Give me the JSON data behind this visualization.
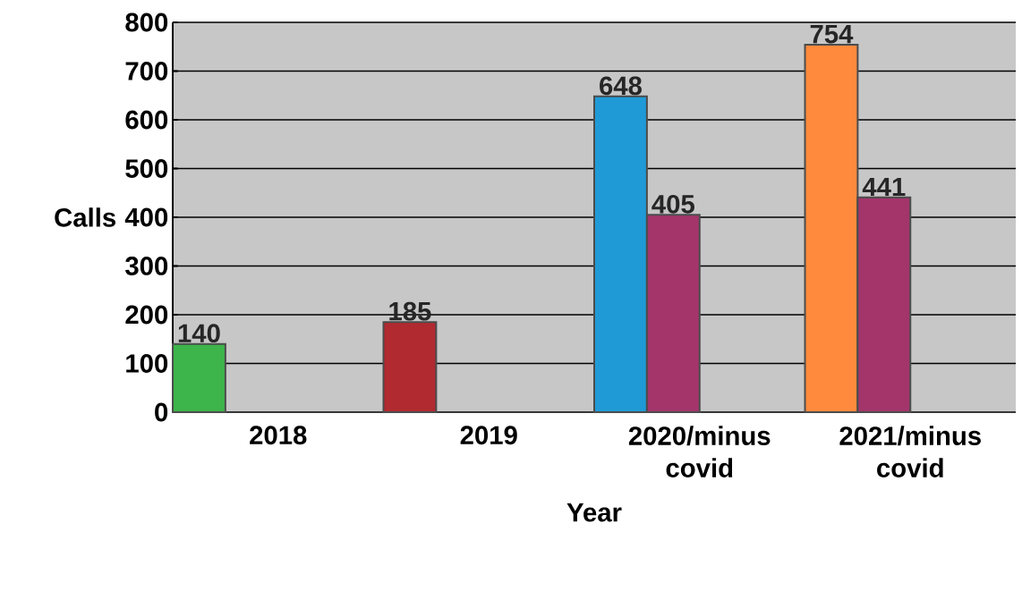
{
  "chart_data": {
    "type": "bar",
    "xlabel": "Year",
    "ylabel": "Calls",
    "categories": [
      "2018",
      "2019",
      "2020/minus covid",
      "2021/minus covid"
    ],
    "series": [
      {
        "colors": [
          "#3db54a",
          "#b02a30",
          "#1f9ad6",
          "#ff8a3d"
        ],
        "values": [
          140,
          185,
          648,
          754
        ]
      },
      {
        "color": "#a3356b",
        "values": [
          null,
          null,
          405,
          441
        ]
      }
    ],
    "ylim": [
      0,
      800
    ],
    "yticks": [
      0,
      100,
      200,
      300,
      400,
      500,
      600,
      700,
      800
    ],
    "grid": "y",
    "data_labels": true
  }
}
